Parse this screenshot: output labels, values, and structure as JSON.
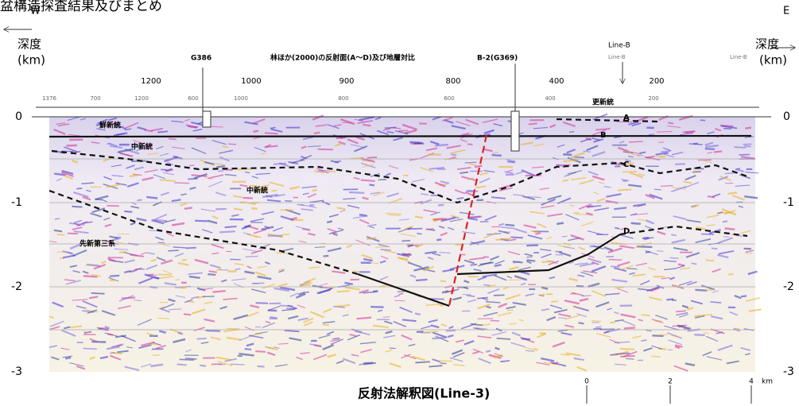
{
  "header": {
    "title": "盆構造探査結果及びまとめ",
    "west": "W",
    "east": "E"
  },
  "axis": {
    "left_label": "深度",
    "left_unit": "(km)",
    "right_label": "深度",
    "right_unit": "(km)",
    "left_ticks": [
      "0",
      "-1",
      "-2",
      "-3"
    ],
    "right_ticks": [
      "0",
      "-1",
      "-2",
      "-3"
    ]
  },
  "section": {
    "heading": "林ほか(2000)の反射面(A～D)及び地層対比",
    "borehole_1": "G386",
    "borehole_2": "B-2(G369)",
    "crossing": "Line-B",
    "crossing_small_1": "Line-B",
    "crossing_small_2": "Line-B",
    "top_numbers": [
      "1200",
      "1000",
      "900",
      "800",
      "400",
      "200"
    ],
    "sub_numbers": [
      "1376",
      "700",
      "1200",
      "600",
      "1000",
      "800",
      "600",
      "400",
      "200"
    ],
    "reflectors": [
      "A",
      "B",
      "C",
      "D"
    ],
    "units": [
      "鮮新統",
      "中新統",
      "中新統",
      "先新第三系",
      "更新統"
    ]
  },
  "footer": {
    "caption": "反射法解釈図(Line-3)",
    "scale": [
      "0",
      "2",
      "4",
      "km"
    ]
  }
}
